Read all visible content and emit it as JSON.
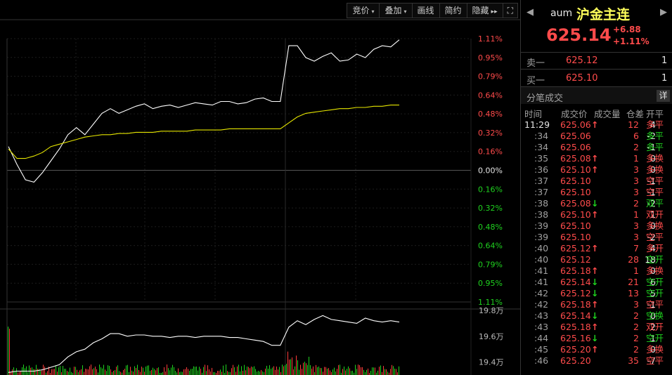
{
  "toolbar": {
    "items": [
      {
        "label": "竞价",
        "dropdown": true
      },
      {
        "label": "叠加",
        "dropdown": true
      },
      {
        "label": "画线",
        "dropdown": false
      },
      {
        "label": "简约",
        "dropdown": false
      },
      {
        "label": "隐藏",
        "dropdown": false,
        "suffix": "▸▸"
      },
      {
        "label": "",
        "dropdown": false,
        "icon": "fullscreen-icon"
      }
    ]
  },
  "price_axis": {
    "ticks": [
      "1.11%",
      "0.95%",
      "0.79%",
      "0.64%",
      "0.48%",
      "0.32%",
      "0.16%",
      "0.00%",
      "0.16%",
      "0.32%",
      "0.48%",
      "0.64%",
      "0.79%",
      "0.95%",
      "1.11%"
    ],
    "colors": [
      "#ff4b4b",
      "#ff4b4b",
      "#ff4b4b",
      "#ff4b4b",
      "#ff4b4b",
      "#ff4b4b",
      "#ff4b4b",
      "#e6e6e6",
      "#1fd31f",
      "#1fd31f",
      "#1fd31f",
      "#1fd31f",
      "#1fd31f",
      "#1fd31f",
      "#1fd31f"
    ]
  },
  "volume_axis": {
    "ticks": [
      "19.8万",
      "19.6万",
      "19.4万"
    ]
  },
  "chart_data": {
    "type": "line",
    "title": "",
    "y_axis_percent_range": [
      -1.11,
      1.11
    ],
    "series": [
      {
        "color": "#ffffff",
        "values": [
          0.2,
          0.05,
          -0.08,
          -0.1,
          -0.02,
          0.08,
          0.18,
          0.3,
          0.36,
          0.3,
          0.39,
          0.48,
          0.52,
          0.48,
          0.51,
          0.54,
          0.56,
          0.52,
          0.54,
          0.55,
          0.53,
          0.55,
          0.57,
          0.56,
          0.55,
          0.58,
          0.58,
          0.56,
          0.57,
          0.6,
          0.61,
          0.58,
          0.58,
          1.05,
          1.05,
          0.95,
          0.92,
          0.96,
          0.99,
          0.92,
          0.93,
          0.98,
          0.95,
          1.02,
          1.05,
          1.04,
          1.1
        ]
      },
      {
        "color": "#e6e600",
        "values": [
          0.18,
          0.1,
          0.1,
          0.12,
          0.15,
          0.2,
          0.22,
          0.24,
          0.26,
          0.28,
          0.29,
          0.3,
          0.3,
          0.31,
          0.31,
          0.32,
          0.32,
          0.32,
          0.33,
          0.33,
          0.33,
          0.33,
          0.34,
          0.34,
          0.34,
          0.34,
          0.35,
          0.35,
          0.35,
          0.35,
          0.35,
          0.35,
          0.35,
          0.4,
          0.45,
          0.48,
          0.49,
          0.5,
          0.51,
          0.52,
          0.52,
          0.53,
          0.53,
          0.54,
          0.54,
          0.55,
          0.55
        ]
      }
    ],
    "volume_line": [
      19.32,
      19.33,
      19.33,
      19.33,
      19.34,
      19.36,
      19.38,
      19.44,
      19.48,
      19.5,
      19.55,
      19.58,
      19.62,
      19.62,
      19.6,
      19.61,
      19.61,
      19.6,
      19.6,
      19.59,
      19.6,
      19.6,
      19.59,
      19.6,
      19.6,
      19.6,
      19.59,
      19.59,
      19.58,
      19.57,
      19.56,
      19.53,
      19.53,
      19.67,
      19.72,
      19.69,
      19.73,
      19.76,
      19.73,
      19.72,
      19.71,
      19.7,
      19.74,
      19.72,
      19.71,
      19.72,
      19.71
    ],
    "volume_ylim": [
      19.3,
      19.8
    ]
  },
  "quote": {
    "symbol": "aum",
    "name": "沪金主连",
    "price": "625.14",
    "change": "+6.88",
    "change_pct": "+1.11%"
  },
  "order_book": {
    "sell1": {
      "label": "卖一",
      "price": "625.12",
      "qty": "1"
    },
    "buy1": {
      "label": "买一",
      "price": "625.10",
      "qty": "1"
    }
  },
  "ticks_panel": {
    "title": "分笔成交",
    "detail_label": "详",
    "headers": [
      "时间",
      "成交价",
      "成交量",
      "仓差",
      "开平"
    ],
    "rows": [
      {
        "time": "11:29",
        "price": "625.06",
        "dir": "up",
        "vol": "12",
        "oi": "4",
        "type": "多平",
        "type_color": "red"
      },
      {
        "time": ":34",
        "price": "625.06",
        "dir": "",
        "vol": "6",
        "oi": "-2",
        "type": "多平",
        "type_color": "green"
      },
      {
        "time": ":34",
        "price": "625.06",
        "dir": "",
        "vol": "2",
        "oi": "-1",
        "type": "多平",
        "type_color": "green"
      },
      {
        "time": ":35",
        "price": "625.08",
        "dir": "up",
        "vol": "1",
        "oi": "0",
        "type": "多换",
        "type_color": "red"
      },
      {
        "time": ":36",
        "price": "625.10",
        "dir": "up",
        "vol": "3",
        "oi": "0",
        "type": "多换",
        "type_color": "red"
      },
      {
        "time": ":37",
        "price": "625.10",
        "dir": "",
        "vol": "3",
        "oi": "-1",
        "type": "空平",
        "type_color": "red"
      },
      {
        "time": ":37",
        "price": "625.10",
        "dir": "",
        "vol": "3",
        "oi": "-1",
        "type": "空平",
        "type_color": "red"
      },
      {
        "time": ":38",
        "price": "625.08",
        "dir": "down",
        "vol": "2",
        "oi": "-2",
        "type": "双平",
        "type_color": "green"
      },
      {
        "time": ":38",
        "price": "625.10",
        "dir": "up",
        "vol": "1",
        "oi": "1",
        "type": "双开",
        "type_color": "red"
      },
      {
        "time": ":39",
        "price": "625.10",
        "dir": "",
        "vol": "3",
        "oi": "0",
        "type": "多换",
        "type_color": "red"
      },
      {
        "time": ":39",
        "price": "625.10",
        "dir": "",
        "vol": "3",
        "oi": "-2",
        "type": "空平",
        "type_color": "red"
      },
      {
        "time": ":40",
        "price": "625.12",
        "dir": "up",
        "vol": "7",
        "oi": "4",
        "type": "多开",
        "type_color": "red"
      },
      {
        "time": ":40",
        "price": "625.12",
        "dir": "",
        "vol": "28",
        "oi": "18",
        "type": "空开",
        "type_color": "green"
      },
      {
        "time": ":41",
        "price": "625.18",
        "dir": "up",
        "vol": "1",
        "oi": "0",
        "type": "多换",
        "type_color": "red"
      },
      {
        "time": ":41",
        "price": "625.14",
        "dir": "down",
        "vol": "21",
        "oi": "6",
        "type": "空开",
        "type_color": "green"
      },
      {
        "time": ":42",
        "price": "625.12",
        "dir": "down",
        "vol": "13",
        "oi": "5",
        "type": "空开",
        "type_color": "green"
      },
      {
        "time": ":42",
        "price": "625.18",
        "dir": "up",
        "vol": "3",
        "oi": "-1",
        "type": "空平",
        "type_color": "red"
      },
      {
        "time": ":43",
        "price": "625.14",
        "dir": "down",
        "vol": "2",
        "oi": "0",
        "type": "空换",
        "type_color": "green"
      },
      {
        "time": ":43",
        "price": "625.18",
        "dir": "up",
        "vol": "2",
        "oi": "2",
        "type": "双开",
        "type_color": "red"
      },
      {
        "time": ":44",
        "price": "625.16",
        "dir": "down",
        "vol": "2",
        "oi": "1",
        "type": "空开",
        "type_color": "green"
      },
      {
        "time": ":45",
        "price": "625.20",
        "dir": "up",
        "vol": "2",
        "oi": "0",
        "type": "多换",
        "type_color": "red"
      },
      {
        "time": ":46",
        "price": "625.20",
        "dir": "",
        "vol": "35",
        "oi": "-7",
        "type": "空平",
        "type_color": "red"
      }
    ]
  }
}
